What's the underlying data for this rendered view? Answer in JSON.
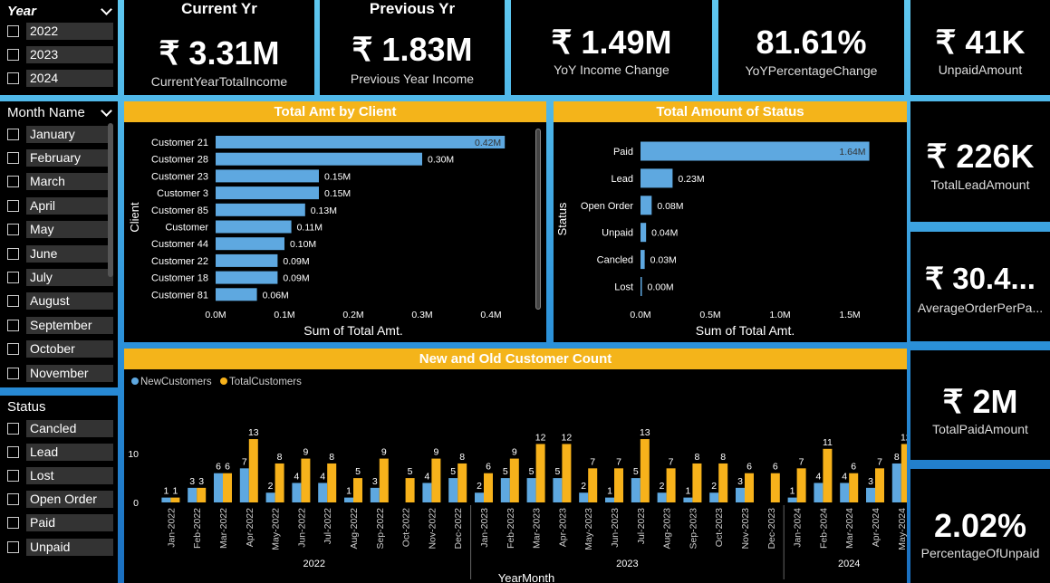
{
  "slicers": {
    "year": {
      "title": "Year",
      "items": [
        "2022",
        "2023",
        "2024"
      ]
    },
    "month": {
      "title": "Month Name",
      "items": [
        "January",
        "February",
        "March",
        "April",
        "May",
        "June",
        "July",
        "August",
        "September",
        "October",
        "November"
      ]
    },
    "status": {
      "title": "Status",
      "items": [
        "Cancled",
        "Lead",
        "Lost",
        "Open Order",
        "Paid",
        "Unpaid"
      ]
    }
  },
  "kpis": {
    "current": {
      "title": "Current Yr",
      "value": "₹ 3.31M",
      "label": "CurrentYearTotalIncome"
    },
    "previous": {
      "title": "Previous Yr",
      "value": "₹ 1.83M",
      "label": "Previous Year Income"
    },
    "yoy_change": {
      "value": "₹ 1.49M",
      "label": "YoY Income Change"
    },
    "yoy_pct": {
      "value": "81.61%",
      "label": "YoYPercentageChange"
    },
    "unpaid": {
      "value": "₹ 41K",
      "label": "UnpaidAmount"
    },
    "lead": {
      "value": "₹ 226K",
      "label": "TotalLeadAmount"
    },
    "avg_order": {
      "value": "₹ 30.4...",
      "label": "AverageOrderPerPa..."
    },
    "paid": {
      "value": "₹ 2M",
      "label": "TotalPaidAmount"
    },
    "pct_unpaid": {
      "value": "2.02%",
      "label": "PercentageOfUnpaid"
    }
  },
  "colors": {
    "blue": "#5ea8e0",
    "orange": "#f7b21b",
    "header": "#f4b41a"
  },
  "chart_data": [
    {
      "type": "bar",
      "orientation": "horizontal",
      "title": "Total Amt by Client",
      "xlabel": "Sum of Total Amt.",
      "ylabel": "Client",
      "categories": [
        "Customer 21",
        "Customer 28",
        "Customer 23",
        "Customer 3",
        "Customer 85",
        "Customer",
        "Customer 44",
        "Customer 22",
        "Customer 18",
        "Customer 81"
      ],
      "values": [
        0.42,
        0.3,
        0.15,
        0.15,
        0.13,
        0.11,
        0.1,
        0.09,
        0.09,
        0.06
      ],
      "data_labels": [
        "0.42M",
        "0.30M",
        "0.15M",
        "0.15M",
        "0.13M",
        "0.11M",
        "0.10M",
        "0.09M",
        "0.09M",
        "0.06M"
      ],
      "xticks": [
        "0.0M",
        "0.1M",
        "0.2M",
        "0.3M",
        "0.4M"
      ],
      "xlim": [
        0,
        0.4
      ]
    },
    {
      "type": "bar",
      "orientation": "horizontal",
      "title": "Total Amount of Status",
      "xlabel": "Sum of Total Amt.",
      "ylabel": "Status",
      "categories": [
        "Paid",
        "Lead",
        "Open Order",
        "Unpaid",
        "Cancled",
        "Lost"
      ],
      "values": [
        1.64,
        0.23,
        0.08,
        0.04,
        0.03,
        0.0
      ],
      "data_labels": [
        "1.64M",
        "0.23M",
        "0.08M",
        "0.04M",
        "0.03M",
        "0.00M"
      ],
      "xticks": [
        "0.0M",
        "0.5M",
        "1.0M",
        "1.5M"
      ],
      "xlim": [
        0,
        1.5
      ]
    },
    {
      "type": "bar",
      "title": "New and Old Customer Count",
      "xlabel": "YearMonth",
      "legend": "top-left",
      "categories": [
        "Jan-2022",
        "Feb-2022",
        "Mar-2022",
        "Apr-2022",
        "May-2022",
        "Jun-2022",
        "Jul-2022",
        "Aug-2022",
        "Sep-2022",
        "Oct-2022",
        "Nov-2022",
        "Dec-2022",
        "Jan-2023",
        "Feb-2023",
        "Mar-2023",
        "Apr-2023",
        "May-2023",
        "Jun-2023",
        "Jul-2023",
        "Aug-2023",
        "Sep-2023",
        "Oct-2023",
        "Nov-2023",
        "Dec-2023",
        "Jan-2024",
        "Feb-2024",
        "Mar-2024",
        "Apr-2024",
        "May-2024"
      ],
      "year_groups": [
        {
          "label": "2022",
          "count": 12
        },
        {
          "label": "2023",
          "count": 12
        },
        {
          "label": "2024",
          "count": 5
        }
      ],
      "yticks": [
        "0",
        "10"
      ],
      "ylim": [
        0,
        13
      ],
      "series": [
        {
          "name": "NewCustomers",
          "values": [
            1,
            3,
            6,
            7,
            2,
            4,
            4,
            1,
            3,
            null,
            4,
            5,
            2,
            5,
            5,
            5,
            2,
            1,
            5,
            2,
            1,
            2,
            3,
            null,
            1,
            4,
            4,
            3,
            8
          ]
        },
        {
          "name": "TotalCustomers",
          "values": [
            1,
            3,
            6,
            13,
            8,
            9,
            8,
            5,
            9,
            5,
            9,
            8,
            6,
            9,
            12,
            12,
            7,
            7,
            13,
            7,
            8,
            8,
            6,
            6,
            7,
            11,
            6,
            7,
            12
          ]
        }
      ]
    }
  ]
}
